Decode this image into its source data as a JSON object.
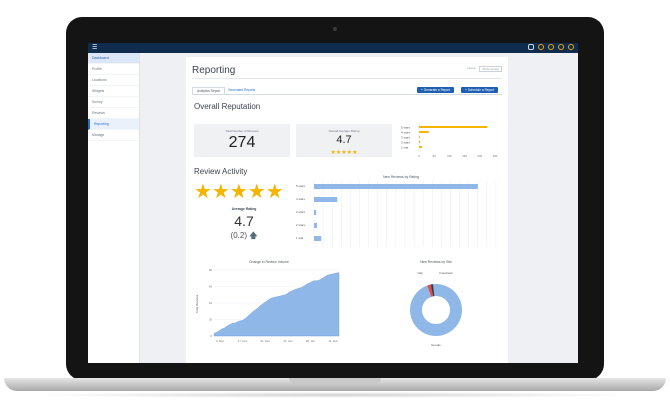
{
  "topbar": {
    "menu_icon": "hamburger-icon"
  },
  "sidebar": {
    "items": [
      {
        "label": "Dashboard",
        "state": "head"
      },
      {
        "label": "Profile",
        "state": ""
      },
      {
        "label": "Locations",
        "state": ""
      },
      {
        "label": "Widgets",
        "state": ""
      },
      {
        "label": "Survey",
        "state": ""
      },
      {
        "label": "Reviews",
        "state": ""
      },
      {
        "label": "Reporting",
        "state": "active"
      },
      {
        "label": "Manage",
        "state": ""
      }
    ]
  },
  "page": {
    "title": "Reporting",
    "breadcrumb": {
      "home": "Home",
      "current": "Pizza Group"
    },
    "tabs": [
      {
        "label": "Analytics Report"
      },
      {
        "label": "Generated Reports"
      }
    ],
    "buttons": {
      "generate": "+ Generate a Report",
      "schedule": "+ Schedule a Report"
    }
  },
  "overall": {
    "heading": "Overall Reputation",
    "total_reviews_label": "Total Number of Reviews",
    "total_reviews": "274",
    "avg_rating_label": "Overall Average Rating",
    "avg_rating": "4.7",
    "stars": "★★★★★"
  },
  "activity": {
    "heading": "Review Activity",
    "stars": "★★★★★",
    "avg_label": "Average Rating",
    "avg_value": "4.7",
    "change": "(0.2)"
  },
  "chart_data": [
    {
      "type": "bar",
      "orientation": "horizontal",
      "title": "",
      "categories": [
        "5 stars",
        "4 stars",
        "3 stars",
        "2 stars",
        "1 star"
      ],
      "values": [
        225,
        32,
        3,
        4,
        10
      ],
      "xlim": [
        0,
        250
      ],
      "ticks": [
        "0",
        "50",
        "100",
        "150",
        "200",
        "250"
      ],
      "color": "#f4b400"
    },
    {
      "type": "bar",
      "orientation": "horizontal",
      "title": "New Reviews by Rating",
      "categories": [
        "5 stars",
        "4 stars",
        "3 stars",
        "2 stars",
        "1 star"
      ],
      "values": [
        225,
        32,
        3,
        4,
        10
      ],
      "xlim": [
        0,
        250
      ],
      "color": "#8fb7e8"
    },
    {
      "type": "area",
      "title": "Change in Review Volume",
      "ylabel": "Total Reviews",
      "xticks": [
        "3. Dec",
        "17. Dec",
        "31. Dec",
        "14. Jan",
        "28. Jan",
        "11. Feb"
      ],
      "yticks": [
        "0",
        "20",
        "40",
        "60",
        "80"
      ],
      "ylim": [
        0,
        80
      ],
      "values": [
        3,
        5,
        8,
        10,
        13,
        15,
        16,
        18,
        19,
        22,
        26,
        30,
        33,
        37,
        40,
        43,
        46,
        47,
        48,
        49,
        50,
        53,
        55,
        57,
        58,
        60,
        63,
        65,
        67,
        67,
        69,
        72,
        74,
        75,
        76,
        77
      ],
      "color": "#8fb7e8"
    },
    {
      "type": "pie",
      "title": "New Reviews by Site",
      "labels": [
        "Google",
        "Facebook",
        "Yelp"
      ],
      "values": [
        264,
        6,
        4
      ],
      "colors": [
        "#8fb7e8",
        "#e34b4b",
        "#2f3d4f"
      ]
    }
  ]
}
